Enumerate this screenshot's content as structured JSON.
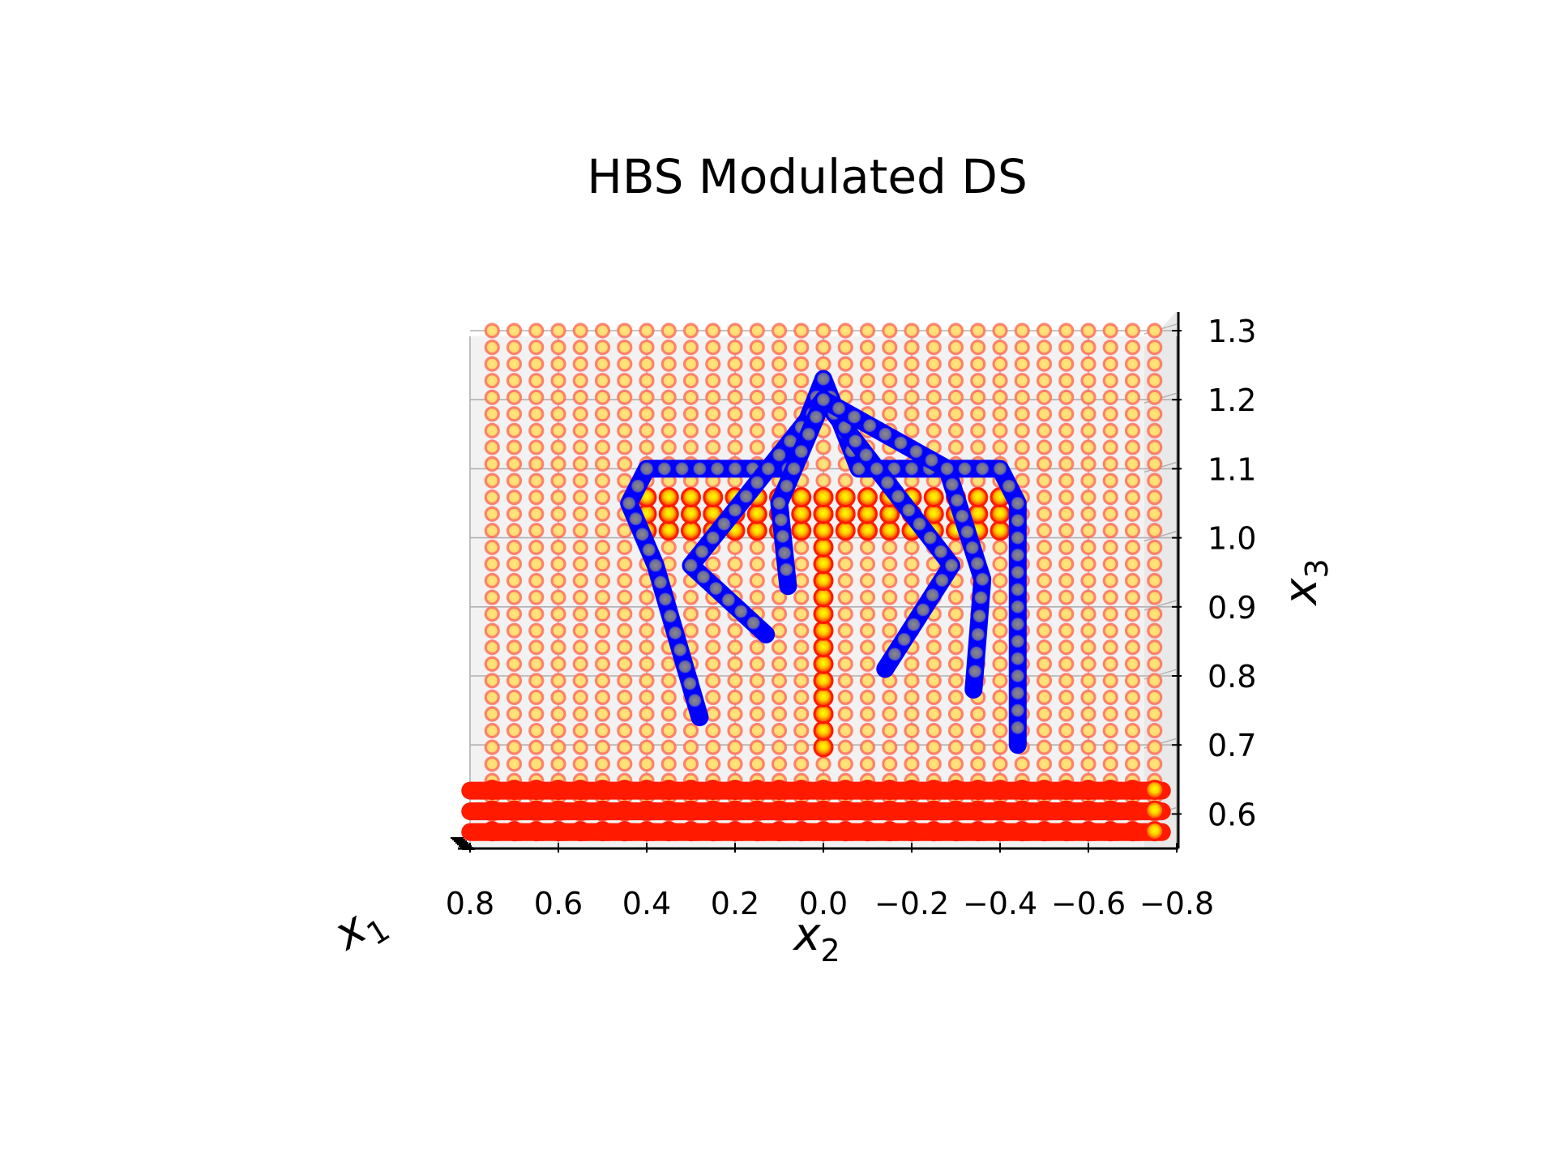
{
  "chart_data": {
    "type": "scatter",
    "projection": "3d",
    "title": "HBS Modulated DS",
    "xlabel": "x",
    "xlabel_sub": "2",
    "ylabel": "x",
    "ylabel_sub": "3",
    "zlabel": "x",
    "zlabel_sub": "1",
    "x_ticks": [
      "0.8",
      "0.6",
      "0.4",
      "0.2",
      "0.0",
      "−0.2",
      "−0.4",
      "−0.6",
      "−0.8"
    ],
    "x_tick_values": [
      0.8,
      0.6,
      0.4,
      0.2,
      0.0,
      -0.2,
      -0.4,
      -0.6,
      -0.8
    ],
    "y_ticks": [
      "0.6",
      "0.7",
      "0.8",
      "0.9",
      "1.0",
      "1.1",
      "1.2",
      "1.3"
    ],
    "y_tick_values": [
      0.6,
      0.7,
      0.8,
      0.9,
      1.0,
      1.1,
      1.2,
      1.3
    ],
    "xlim": [
      0.8,
      -0.8
    ],
    "ylim": [
      0.55,
      1.33
    ],
    "grid": true,
    "grid_x2_range": [
      0.75,
      -0.75
    ],
    "grid_x3_range": [
      0.6,
      1.3
    ],
    "grid_cols": 31,
    "grid_rows": 30,
    "colors": {
      "grid_marker_fill": "#ffe06e",
      "grid_marker_edge": "#ff7060",
      "trajectory": "#0000ff",
      "trajectory_marker": "#7f7f9f",
      "attractor_fill": "#ffee00",
      "attractor_edge": "#ff1a00",
      "pane": "#f2f2f2",
      "gridline": "#b0b0b0"
    },
    "trajectories": [
      {
        "points": [
          [
            0.0,
            1.23
          ],
          [
            -0.08,
            1.1
          ],
          [
            -0.4,
            1.1
          ],
          [
            -0.44,
            1.05
          ],
          [
            -0.44,
            0.7
          ]
        ]
      },
      {
        "points": [
          [
            0.0,
            1.23
          ],
          [
            0.08,
            1.1
          ],
          [
            0.4,
            1.1
          ],
          [
            0.44,
            1.05
          ],
          [
            0.38,
            0.96
          ],
          [
            0.28,
            0.74
          ]
        ]
      },
      {
        "points": [
          [
            0.0,
            1.2
          ],
          [
            0.3,
            0.96
          ],
          [
            0.13,
            0.86
          ]
        ]
      },
      {
        "points": [
          [
            0.0,
            1.2
          ],
          [
            -0.29,
            0.96
          ],
          [
            -0.14,
            0.81
          ]
        ]
      },
      {
        "points": [
          [
            0.0,
            1.2
          ],
          [
            0.1,
            1.05
          ],
          [
            0.08,
            0.93
          ]
        ]
      },
      {
        "points": [
          [
            0.0,
            1.2
          ],
          [
            -0.28,
            1.1
          ],
          [
            -0.36,
            0.94
          ],
          [
            -0.34,
            0.78
          ]
        ]
      }
    ],
    "attractor_band": {
      "x2_range": [
        0.44,
        -0.44
      ],
      "x3_range": [
        1.0,
        1.07
      ]
    },
    "attractor_column": {
      "x2_range": [
        0.03,
        -0.03
      ],
      "x3_range": [
        0.68,
        1.07
      ]
    },
    "floor_band": {
      "x3_range": [
        0.575,
        0.635
      ]
    }
  }
}
